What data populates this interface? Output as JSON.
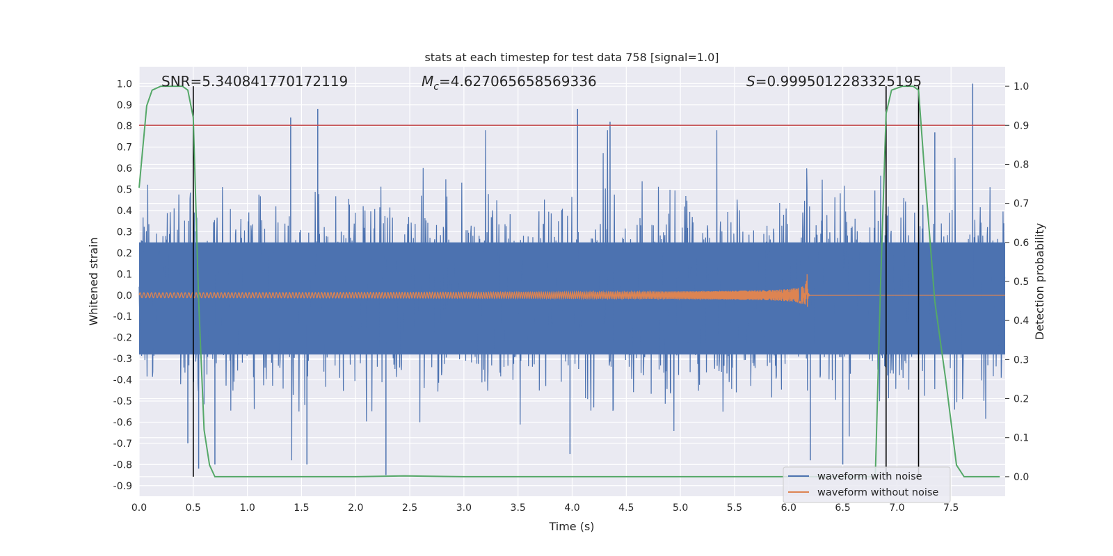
{
  "chart_data": {
    "type": "line",
    "title": "stats at each timestep for test data 758 [signal=1.0]",
    "xlabel": "Time (s)",
    "ylabel": "Whitened strain",
    "y2label": "Detection probability",
    "xlim": [
      0.0,
      8.0
    ],
    "ylim": [
      -0.95,
      1.08
    ],
    "y2lim": [
      -0.05,
      1.05
    ],
    "xticks": [
      "0.0",
      "0.5",
      "1.0",
      "1.5",
      "2.0",
      "2.5",
      "3.0",
      "3.5",
      "4.0",
      "4.5",
      "5.0",
      "5.5",
      "6.0",
      "6.5",
      "7.0",
      "7.5"
    ],
    "yticks": [
      "1.0",
      "0.9",
      "0.8",
      "0.7",
      "0.6",
      "0.5",
      "0.4",
      "0.3",
      "0.2",
      "0.1",
      "0.0",
      "-0.1",
      "-0.2",
      "-0.3",
      "-0.4",
      "-0.5",
      "-0.6",
      "-0.7",
      "-0.8",
      "-0.9"
    ],
    "y2ticks": [
      "1.0",
      "0.9",
      "0.8",
      "0.7",
      "0.6",
      "0.5",
      "0.4",
      "0.3",
      "0.2",
      "0.1",
      "0.0"
    ],
    "annotations": {
      "snr": "SNR=5.340841770172119",
      "mc_symbol": "M",
      "mc_sub": "c",
      "mc_value": "=4.627065658569336",
      "s_symbol": "S",
      "s_value": "=0.9995012283325195"
    },
    "threshold": {
      "value": 0.9,
      "axis": "y2",
      "color": "#c44e52"
    },
    "detection_windows": [
      {
        "start": 0.5,
        "end": 0.5
      },
      {
        "start": 6.9,
        "end": 7.2
      }
    ],
    "series": [
      {
        "name": "waveform with noise",
        "color": "#4c72b0",
        "axis": "y",
        "kind": "noise",
        "approx_envelope": [
          -0.6,
          0.6
        ],
        "peaks": [
          {
            "t": 0.45,
            "v": -0.7
          },
          {
            "t": 0.55,
            "v": -0.82
          },
          {
            "t": 0.7,
            "v": -0.8
          },
          {
            "t": 1.4,
            "v": 0.84
          },
          {
            "t": 1.65,
            "v": 0.88
          },
          {
            "t": 1.55,
            "v": -0.8
          },
          {
            "t": 2.28,
            "v": -0.85
          },
          {
            "t": 4.05,
            "v": 0.88
          },
          {
            "t": 4.35,
            "v": 0.82
          },
          {
            "t": 3.98,
            "v": -0.75
          },
          {
            "t": 6.2,
            "v": -0.78
          },
          {
            "t": 6.5,
            "v": -0.8
          },
          {
            "t": 7.7,
            "v": 1.0
          },
          {
            "t": 7.35,
            "v": 0.77
          }
        ]
      },
      {
        "name": "waveform without noise",
        "color": "#dd8452",
        "axis": "y",
        "kind": "chirp",
        "start": 0.0,
        "merger": 6.17,
        "start_amplitude": 0.012,
        "peak_amplitude": 0.1
      },
      {
        "name": "detection probability",
        "color": "#55a868",
        "axis": "y2",
        "x": [
          0.0,
          0.07,
          0.12,
          0.2,
          0.3,
          0.4,
          0.45,
          0.5,
          0.55,
          0.6,
          0.65,
          0.7,
          1.0,
          2.0,
          2.45,
          3.0,
          4.0,
          5.0,
          6.0,
          6.8,
          6.85,
          6.9,
          6.95,
          7.05,
          7.15,
          7.2,
          7.25,
          7.35,
          7.45,
          7.55,
          7.62,
          7.7,
          7.95
        ],
        "y": [
          0.74,
          0.95,
          0.99,
          1.0,
          1.0,
          1.0,
          0.99,
          0.92,
          0.45,
          0.12,
          0.03,
          0.0,
          0.0,
          0.0,
          0.002,
          0.0,
          0.0,
          0.0,
          0.0,
          0.0,
          0.5,
          0.93,
          0.99,
          1.0,
          1.0,
          0.99,
          0.8,
          0.45,
          0.25,
          0.03,
          0.0,
          0.0,
          0.0
        ]
      }
    ],
    "legend": {
      "position": "lower-right",
      "entries": [
        {
          "label": "waveform with noise",
          "color": "#4c72b0"
        },
        {
          "label": "waveform without noise",
          "color": "#dd8452"
        }
      ]
    }
  }
}
